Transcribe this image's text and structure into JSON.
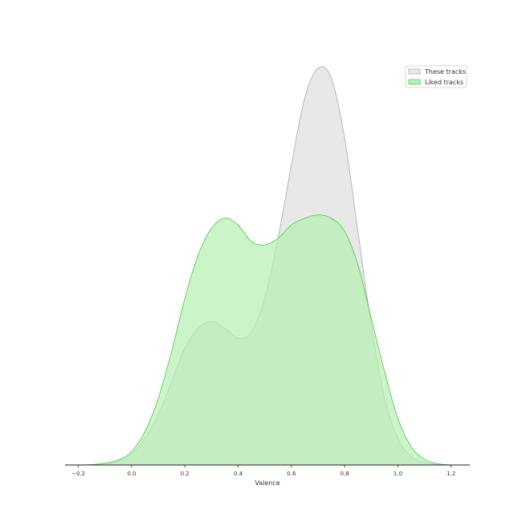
{
  "chart_data": {
    "type": "area",
    "xlabel": "Valence",
    "ylabel": "",
    "title": "",
    "xlim": [
      -0.25,
      1.27
    ],
    "x_ticks": [
      "−0.2",
      "0.0",
      "0.2",
      "0.4",
      "0.6",
      "0.8",
      "1.0",
      "1.2"
    ],
    "x_tick_values": [
      -0.2,
      0.0,
      0.2,
      0.4,
      0.6,
      0.8,
      1.0,
      1.2
    ],
    "y_axis_visible": false,
    "grid": false,
    "legend_position": "top-right",
    "x": [
      -0.2,
      -0.15,
      -0.1,
      -0.05,
      0.0,
      0.05,
      0.1,
      0.15,
      0.2,
      0.25,
      0.3,
      0.35,
      0.4,
      0.45,
      0.5,
      0.55,
      0.6,
      0.65,
      0.7,
      0.75,
      0.8,
      0.85,
      0.9,
      0.95,
      1.0,
      1.05,
      1.1,
      1.15,
      1.2
    ],
    "series": [
      {
        "name": "These tracks",
        "fill": "#e8e8e8",
        "stroke": "#a8a8a8",
        "values": [
          0.0,
          0.1,
          0.4,
          1.2,
          3.2,
          8.0,
          15.0,
          25.0,
          35.0,
          41.0,
          43.0,
          41.0,
          38.0,
          40.0,
          50.0,
          68.0,
          90.0,
          110.0,
          119.0,
          116.0,
          98.0,
          70.0,
          42.0,
          20.0,
          8.0,
          2.5,
          0.7,
          0.15,
          0.0
        ]
      },
      {
        "name": "Liked tracks",
        "fill": "#b5efb2",
        "stroke": "#4fc34a",
        "values": [
          0.0,
          0.1,
          0.5,
          1.5,
          4.0,
          10.0,
          20.0,
          34.0,
          50.0,
          63.0,
          71.0,
          74.0,
          72.0,
          67.0,
          66.0,
          68.0,
          72.0,
          74.0,
          75.0,
          74.0,
          70.0,
          60.0,
          44.0,
          28.0,
          14.0,
          5.5,
          1.7,
          0.4,
          0.0
        ]
      }
    ],
    "ylim": [
      0,
      125
    ]
  }
}
